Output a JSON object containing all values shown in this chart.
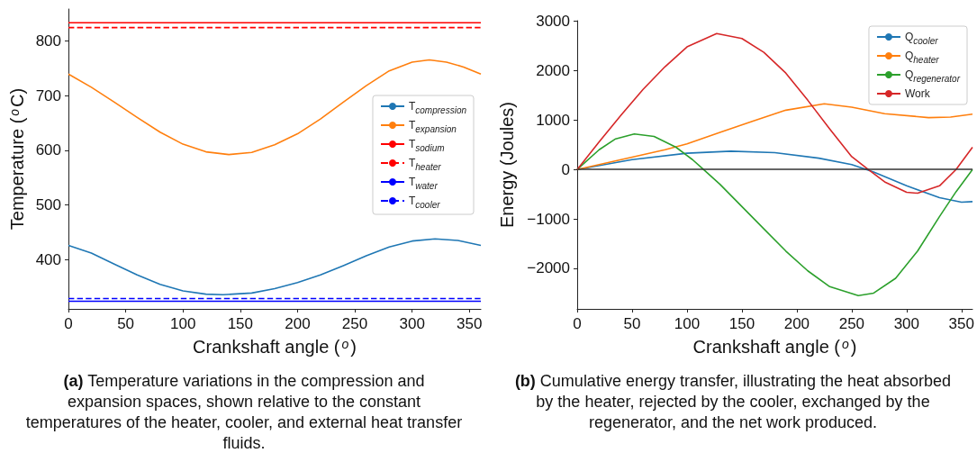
{
  "chart_data": [
    {
      "type": "line",
      "xlabel": "Crankshaft angle ($^{o}$)",
      "ylabel": "Temperature ($^{o}$C)",
      "xlim": [
        0,
        360
      ],
      "xticks": [
        0,
        50,
        100,
        150,
        200,
        250,
        300,
        350
      ],
      "ylim": [
        310,
        858
      ],
      "yticks": [
        400,
        500,
        600,
        700,
        800
      ],
      "legend": "right",
      "annotations": [
        "(a) Temperature variations in the compression and expansion spaces, shown relative to the constant temperatures of the heater, cooler, and external heat transfer fluids."
      ],
      "series": [
        {
          "name": "T$_{compression}$",
          "color": "#1f77b4",
          "x": [
            0,
            20,
            40,
            60,
            80,
            100,
            120,
            135,
            160,
            180,
            200,
            220,
            240,
            260,
            280,
            300,
            320,
            340,
            360
          ],
          "values": [
            426,
            412,
            392,
            372,
            355,
            343,
            337,
            336,
            339,
            347,
            358,
            372,
            389,
            407,
            423,
            434,
            438,
            435,
            426
          ]
        },
        {
          "name": "T$_{expansion}$",
          "color": "#ff7f0e",
          "x": [
            0,
            20,
            40,
            60,
            80,
            100,
            120,
            140,
            160,
            180,
            200,
            220,
            240,
            260,
            280,
            300,
            315,
            330,
            345,
            360
          ],
          "values": [
            739,
            715,
            688,
            660,
            633,
            611,
            597,
            592,
            596,
            610,
            630,
            657,
            688,
            718,
            745,
            761,
            765,
            761,
            752,
            739
          ]
        },
        {
          "name": "T$_{sodium}$",
          "color": "#ff0000",
          "x": [
            0,
            360
          ],
          "values": [
            833,
            833
          ],
          "line_style": "solid"
        },
        {
          "name": "T$_{heater}$",
          "color": "#ff0000",
          "x": [
            0,
            360
          ],
          "values": [
            824,
            824
          ],
          "line_style": "dashed"
        },
        {
          "name": "T$_{water}$",
          "color": "#0000ff",
          "x": [
            0,
            360
          ],
          "values": [
            324,
            324
          ],
          "line_style": "solid"
        },
        {
          "name": "T$_{cooler}$",
          "color": "#0000ff",
          "x": [
            0,
            360
          ],
          "values": [
            329,
            329
          ],
          "line_style": "dashed"
        }
      ]
    },
    {
      "type": "line",
      "xlabel": "Crankshaft angle ($^{o}$)",
      "ylabel": "Energy (Joules)",
      "xlim": [
        0,
        360
      ],
      "xticks": [
        0,
        50,
        100,
        150,
        200,
        250,
        300,
        350
      ],
      "ylim": [
        -2820,
        3010
      ],
      "yticks": [
        -2000,
        -1000,
        0,
        1000,
        2000,
        3000
      ],
      "legend": "top right",
      "annotations": [
        "(b) Cumulative energy transfer, illustrating the heat absorbed by the heater, rejected by the cooler, exchanged by the regenerator, and the net work produced."
      ],
      "ref_lines": [
        {
          "axis": "y",
          "value": 0,
          "color": "#333333"
        }
      ],
      "series": [
        {
          "name": "Q$_{cooler}$",
          "color": "#1f77b4",
          "x": [
            0,
            50,
            100,
            140,
            180,
            220,
            250,
            270,
            300,
            330,
            350,
            360
          ],
          "values": [
            0,
            200,
            330,
            370,
            340,
            230,
            100,
            -50,
            -330,
            -570,
            -660,
            -650
          ]
        },
        {
          "name": "Q$_{heater}$",
          "color": "#ff7f0e",
          "x": [
            0,
            50,
            80,
            100,
            130,
            160,
            190,
            225,
            250,
            280,
            320,
            340,
            360
          ],
          "values": [
            0,
            250,
            400,
            520,
            750,
            980,
            1200,
            1330,
            1260,
            1130,
            1050,
            1060,
            1120
          ]
        },
        {
          "name": "Q$_{regenerator}$",
          "color": "#2ca02c",
          "x": [
            0,
            20,
            35,
            52,
            70,
            90,
            105,
            115,
            130,
            150,
            170,
            190,
            210,
            230,
            256,
            270,
            290,
            310,
            330,
            345,
            360
          ],
          "values": [
            0,
            400,
            620,
            720,
            670,
            450,
            200,
            0,
            -300,
            -750,
            -1200,
            -1650,
            -2050,
            -2370,
            -2550,
            -2500,
            -2200,
            -1650,
            -950,
            -450,
            0
          ]
        },
        {
          "name": "Work",
          "color": "#d62728",
          "x": [
            0,
            20,
            40,
            60,
            80,
            100,
            127,
            150,
            170,
            190,
            210,
            230,
            250,
            265,
            280,
            300,
            310,
            330,
            345,
            360
          ],
          "values": [
            0,
            560,
            1100,
            1620,
            2080,
            2480,
            2750,
            2650,
            2370,
            1950,
            1400,
            820,
            260,
            0,
            -250,
            -460,
            -480,
            -330,
            0,
            450
          ]
        }
      ]
    }
  ]
}
